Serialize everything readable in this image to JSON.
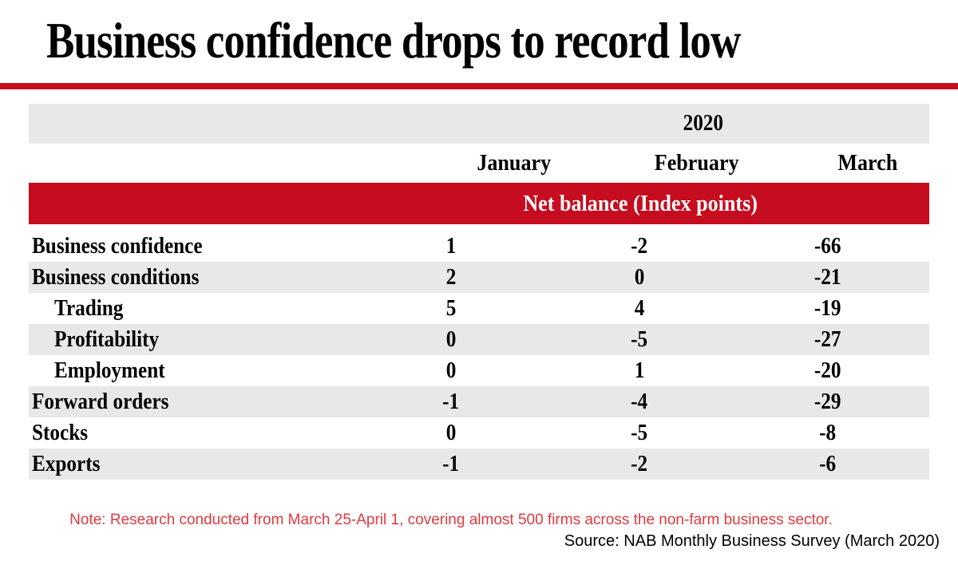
{
  "header": {
    "title": "Business confidence drops to record low"
  },
  "table": {
    "year": "2020",
    "columns": [
      "January",
      "February",
      "March"
    ],
    "band_label": "Net balance (Index points)",
    "rows": [
      {
        "label": "Business confidence",
        "indent": false,
        "values": [
          "1",
          "-2",
          "-66"
        ]
      },
      {
        "label": "Business conditions",
        "indent": false,
        "values": [
          "2",
          "0",
          "-21"
        ]
      },
      {
        "label": "Trading",
        "indent": true,
        "values": [
          "5",
          "4",
          "-19"
        ]
      },
      {
        "label": "Profitability",
        "indent": true,
        "values": [
          "0",
          "-5",
          "-27"
        ]
      },
      {
        "label": "Employment",
        "indent": true,
        "values": [
          "0",
          "1",
          "-20"
        ]
      },
      {
        "label": "Forward orders",
        "indent": false,
        "values": [
          "-1",
          "-4",
          "-29"
        ]
      },
      {
        "label": "Stocks",
        "indent": false,
        "values": [
          "0",
          "-5",
          "-8"
        ]
      },
      {
        "label": "Exports",
        "indent": false,
        "values": [
          "-1",
          "-2",
          "-6"
        ]
      }
    ]
  },
  "footer": {
    "note": "Note: Research conducted from March 25-April 1, covering almost 500 firms across the non-farm business sector.",
    "source": "Source: NAB Monthly Business Survey (March 2020)"
  },
  "colors": {
    "accent_red": "#c60d1f",
    "note_red": "#e0393f",
    "row_gray": "#e8e8e8",
    "headline_black": "#000000"
  },
  "chart_data": {
    "type": "table",
    "title": "Business confidence drops to record low",
    "year": "2020",
    "unit": "Net balance (Index points)",
    "categories": [
      "January",
      "February",
      "March"
    ],
    "series": [
      {
        "name": "Business confidence",
        "values": [
          1,
          -2,
          -66
        ]
      },
      {
        "name": "Business conditions",
        "values": [
          2,
          0,
          -21
        ]
      },
      {
        "name": "Trading",
        "values": [
          5,
          4,
          -19
        ]
      },
      {
        "name": "Profitability",
        "values": [
          0,
          -5,
          -27
        ]
      },
      {
        "name": "Employment",
        "values": [
          0,
          1,
          -20
        ]
      },
      {
        "name": "Forward orders",
        "values": [
          -1,
          -4,
          -29
        ]
      },
      {
        "name": "Stocks",
        "values": [
          0,
          -5,
          -8
        ]
      },
      {
        "name": "Exports",
        "values": [
          -1,
          -2,
          -6
        ]
      }
    ],
    "note": "Note: Research conducted from March 25-April 1, covering almost 500 firms across the non-farm business sector.",
    "source": "Source: NAB Monthly Business Survey (March 2020)"
  }
}
